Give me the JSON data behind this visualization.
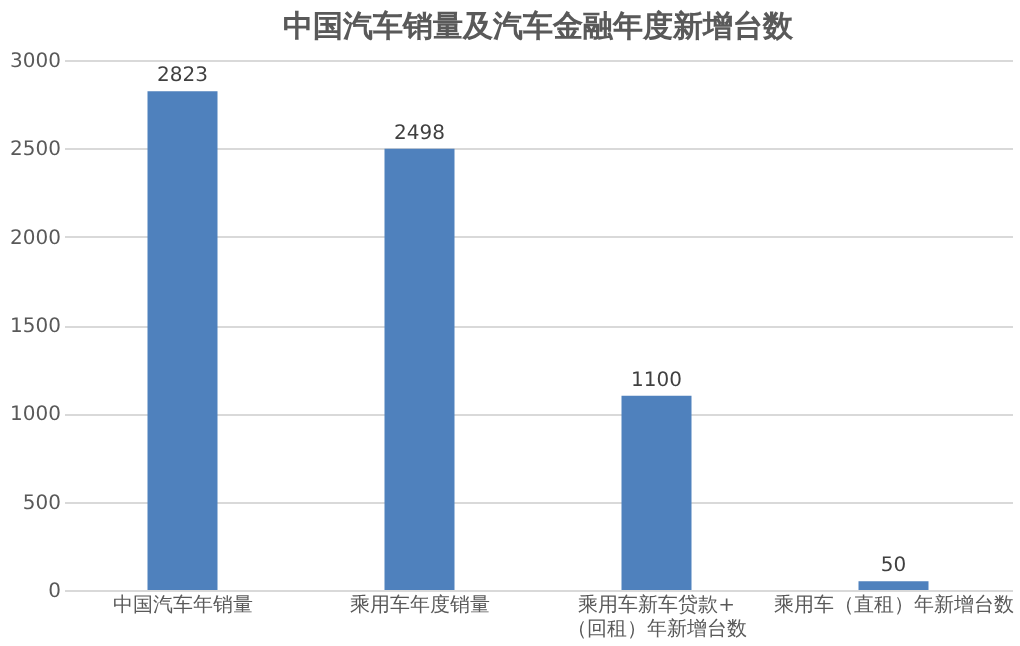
{
  "chart_data": {
    "type": "bar",
    "title": "中国汽车销量及汽车金融年度新增台数",
    "categories": [
      "中国汽车年销量",
      "乘用车年度销量",
      "乘用车新车贷款+（回租）年新增台数",
      "乘用车（直租）年新增台数"
    ],
    "values": [
      2823,
      2498,
      1100,
      50
    ],
    "color": "#4f81bd",
    "ylim": [
      0,
      3000
    ],
    "yticks": [
      0,
      500,
      1000,
      1500,
      2000,
      2500,
      3000
    ],
    "grid": "y",
    "data_labels": true
  }
}
